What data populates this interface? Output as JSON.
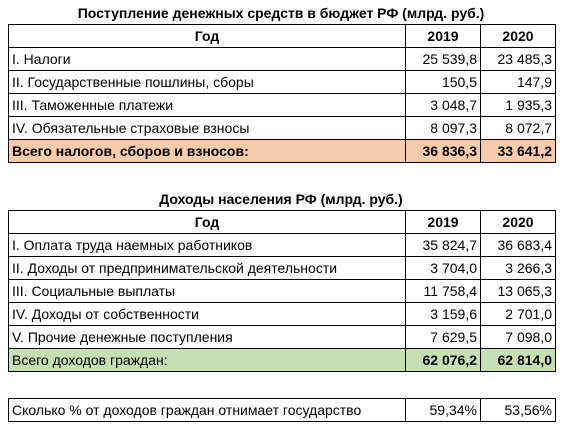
{
  "budget": {
    "title": "Поступление денежных средств в бюджет РФ (млрд. руб.)",
    "header": {
      "year_label": "Год",
      "y1": "2019",
      "y2": "2020"
    },
    "rows": [
      {
        "label": "I. Налоги",
        "v2019": "25 539,8",
        "v2020": "23 485,3"
      },
      {
        "label": "II. Государственные пошлины, сборы",
        "v2019": "150,5",
        "v2020": "147,9"
      },
      {
        "label": "III. Таможенные платежи",
        "v2019": "3 048,7",
        "v2020": "1 935,3"
      },
      {
        "label": "IV. Обязательные страховые взносы",
        "v2019": "8 097,3",
        "v2020": "8 072,7"
      }
    ],
    "total": {
      "label": "Всего налогов, сборов и взносов:",
      "v2019": "36 836,3",
      "v2020": "33 641,2"
    }
  },
  "income": {
    "title": "Доходы населения РФ (млрд. руб.)",
    "header": {
      "year_label": "Год",
      "y1": "2019",
      "y2": "2020"
    },
    "rows": [
      {
        "label": "I. Оплата труда наемных работников",
        "v2019": "35 824,7",
        "v2020": "36 683,4"
      },
      {
        "label": "II. Доходы от предпринимательской деятельности",
        "v2019": "3 704,0",
        "v2020": "3 266,3"
      },
      {
        "label": "III. Социальные выплаты",
        "v2019": "11 758,4",
        "v2020": "13 065,3"
      },
      {
        "label": "IV. Доходы от собственности",
        "v2019": "3 159,6",
        "v2020": "2 701,0"
      },
      {
        "label": "V. Прочие денежные поступления",
        "v2019": "7 629,5",
        "v2020": "7 098,0"
      }
    ],
    "total": {
      "label": "Всего доходов граждан:",
      "v2019": "62 076,2",
      "v2020": "62 814,0"
    }
  },
  "share": {
    "label": "Сколько % от доходов граждан отнимает государство",
    "v2019": "59,34%",
    "v2020": "53,56%"
  },
  "colors": {
    "total_budget_bg": "#f8cbad",
    "total_income_bg": "#c6e0b4"
  }
}
